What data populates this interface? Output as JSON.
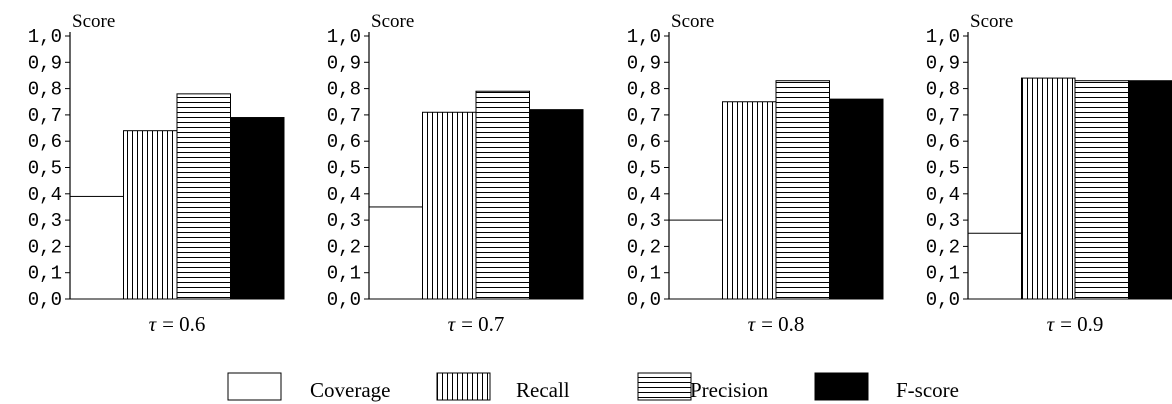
{
  "chart_data": [
    {
      "type": "bar",
      "ylabel": "Score",
      "ylim": [
        0.0,
        1.0
      ],
      "yticks": [
        "0,0",
        "0,1",
        "0,2",
        "0,3",
        "0,4",
        "0,5",
        "0,6",
        "0,7",
        "0,8",
        "0,9",
        "1,0"
      ],
      "xlabel_prefix": "τ",
      "xlabel_value": "= 0.6",
      "categories": [
        "Coverage",
        "Recall",
        "Precision",
        "F-score"
      ],
      "values": [
        0.39,
        0.64,
        0.78,
        0.69
      ]
    },
    {
      "type": "bar",
      "ylabel": "Score",
      "ylim": [
        0.0,
        1.0
      ],
      "yticks": [
        "0,0",
        "0,1",
        "0,2",
        "0,3",
        "0,4",
        "0,5",
        "0,6",
        "0,7",
        "0,8",
        "0,9",
        "1,0"
      ],
      "xlabel_prefix": "τ",
      "xlabel_value": "= 0.7",
      "categories": [
        "Coverage",
        "Recall",
        "Precision",
        "F-score"
      ],
      "values": [
        0.35,
        0.71,
        0.79,
        0.72
      ]
    },
    {
      "type": "bar",
      "ylabel": "Score",
      "ylim": [
        0.0,
        1.0
      ],
      "yticks": [
        "0,0",
        "0,1",
        "0,2",
        "0,3",
        "0,4",
        "0,5",
        "0,6",
        "0,7",
        "0,8",
        "0,9",
        "1,0"
      ],
      "xlabel_prefix": "τ",
      "xlabel_value": "= 0.8",
      "categories": [
        "Coverage",
        "Recall",
        "Precision",
        "F-score"
      ],
      "values": [
        0.3,
        0.75,
        0.83,
        0.76
      ]
    },
    {
      "type": "bar",
      "ylabel": "Score",
      "ylim": [
        0.0,
        1.0
      ],
      "yticks": [
        "0,0",
        "0,1",
        "0,2",
        "0,3",
        "0,4",
        "0,5",
        "0,6",
        "0,7",
        "0,8",
        "0,9",
        "1,0"
      ],
      "xlabel_prefix": "τ",
      "xlabel_value": "= 0.9",
      "categories": [
        "Coverage",
        "Recall",
        "Precision",
        "F-score"
      ],
      "values": [
        0.25,
        0.84,
        0.83,
        0.83
      ]
    }
  ],
  "legend": {
    "position": "bottom-center",
    "items": [
      {
        "label": "Coverage",
        "pattern": "white"
      },
      {
        "label": "Recall",
        "pattern": "vertical-lines"
      },
      {
        "label": "Precision",
        "pattern": "horizontal-lines"
      },
      {
        "label": "F-score",
        "pattern": "black"
      }
    ]
  },
  "colors": {
    "axis": "#000000",
    "bar_fill": "#ffffff",
    "fscore_fill": "#000000"
  }
}
